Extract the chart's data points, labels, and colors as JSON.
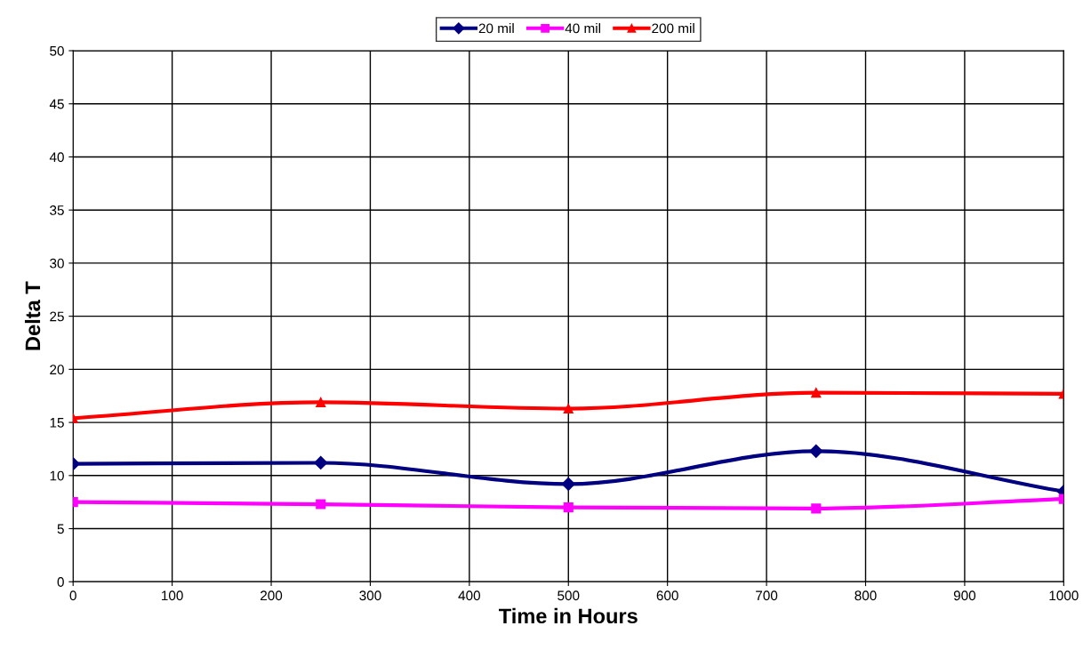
{
  "chart_data": {
    "type": "line",
    "xlabel": "Time in Hours",
    "ylabel": "Delta T",
    "x": [
      0,
      250,
      500,
      750,
      1000
    ],
    "series": [
      {
        "name": "20 mil",
        "color": "#000080",
        "marker": "diamond",
        "values": [
          11.1,
          11.2,
          9.2,
          12.3,
          8.5
        ]
      },
      {
        "name": "40 mil",
        "color": "#ff00ff",
        "marker": "square",
        "values": [
          7.5,
          7.3,
          7.0,
          6.9,
          7.8
        ]
      },
      {
        "name": "200 mil",
        "color": "#ff0000",
        "marker": "triangle",
        "values": [
          15.4,
          16.9,
          16.3,
          17.8,
          17.7
        ]
      }
    ],
    "xlim": [
      0,
      1000
    ],
    "xticks": [
      0,
      100,
      200,
      300,
      400,
      500,
      600,
      700,
      800,
      900,
      1000
    ],
    "ylim": [
      0,
      50
    ],
    "yticks": [
      0,
      5,
      10,
      15,
      20,
      25,
      30,
      35,
      40,
      45,
      50
    ],
    "grid": true,
    "legend": "top",
    "line_style": "solid"
  }
}
